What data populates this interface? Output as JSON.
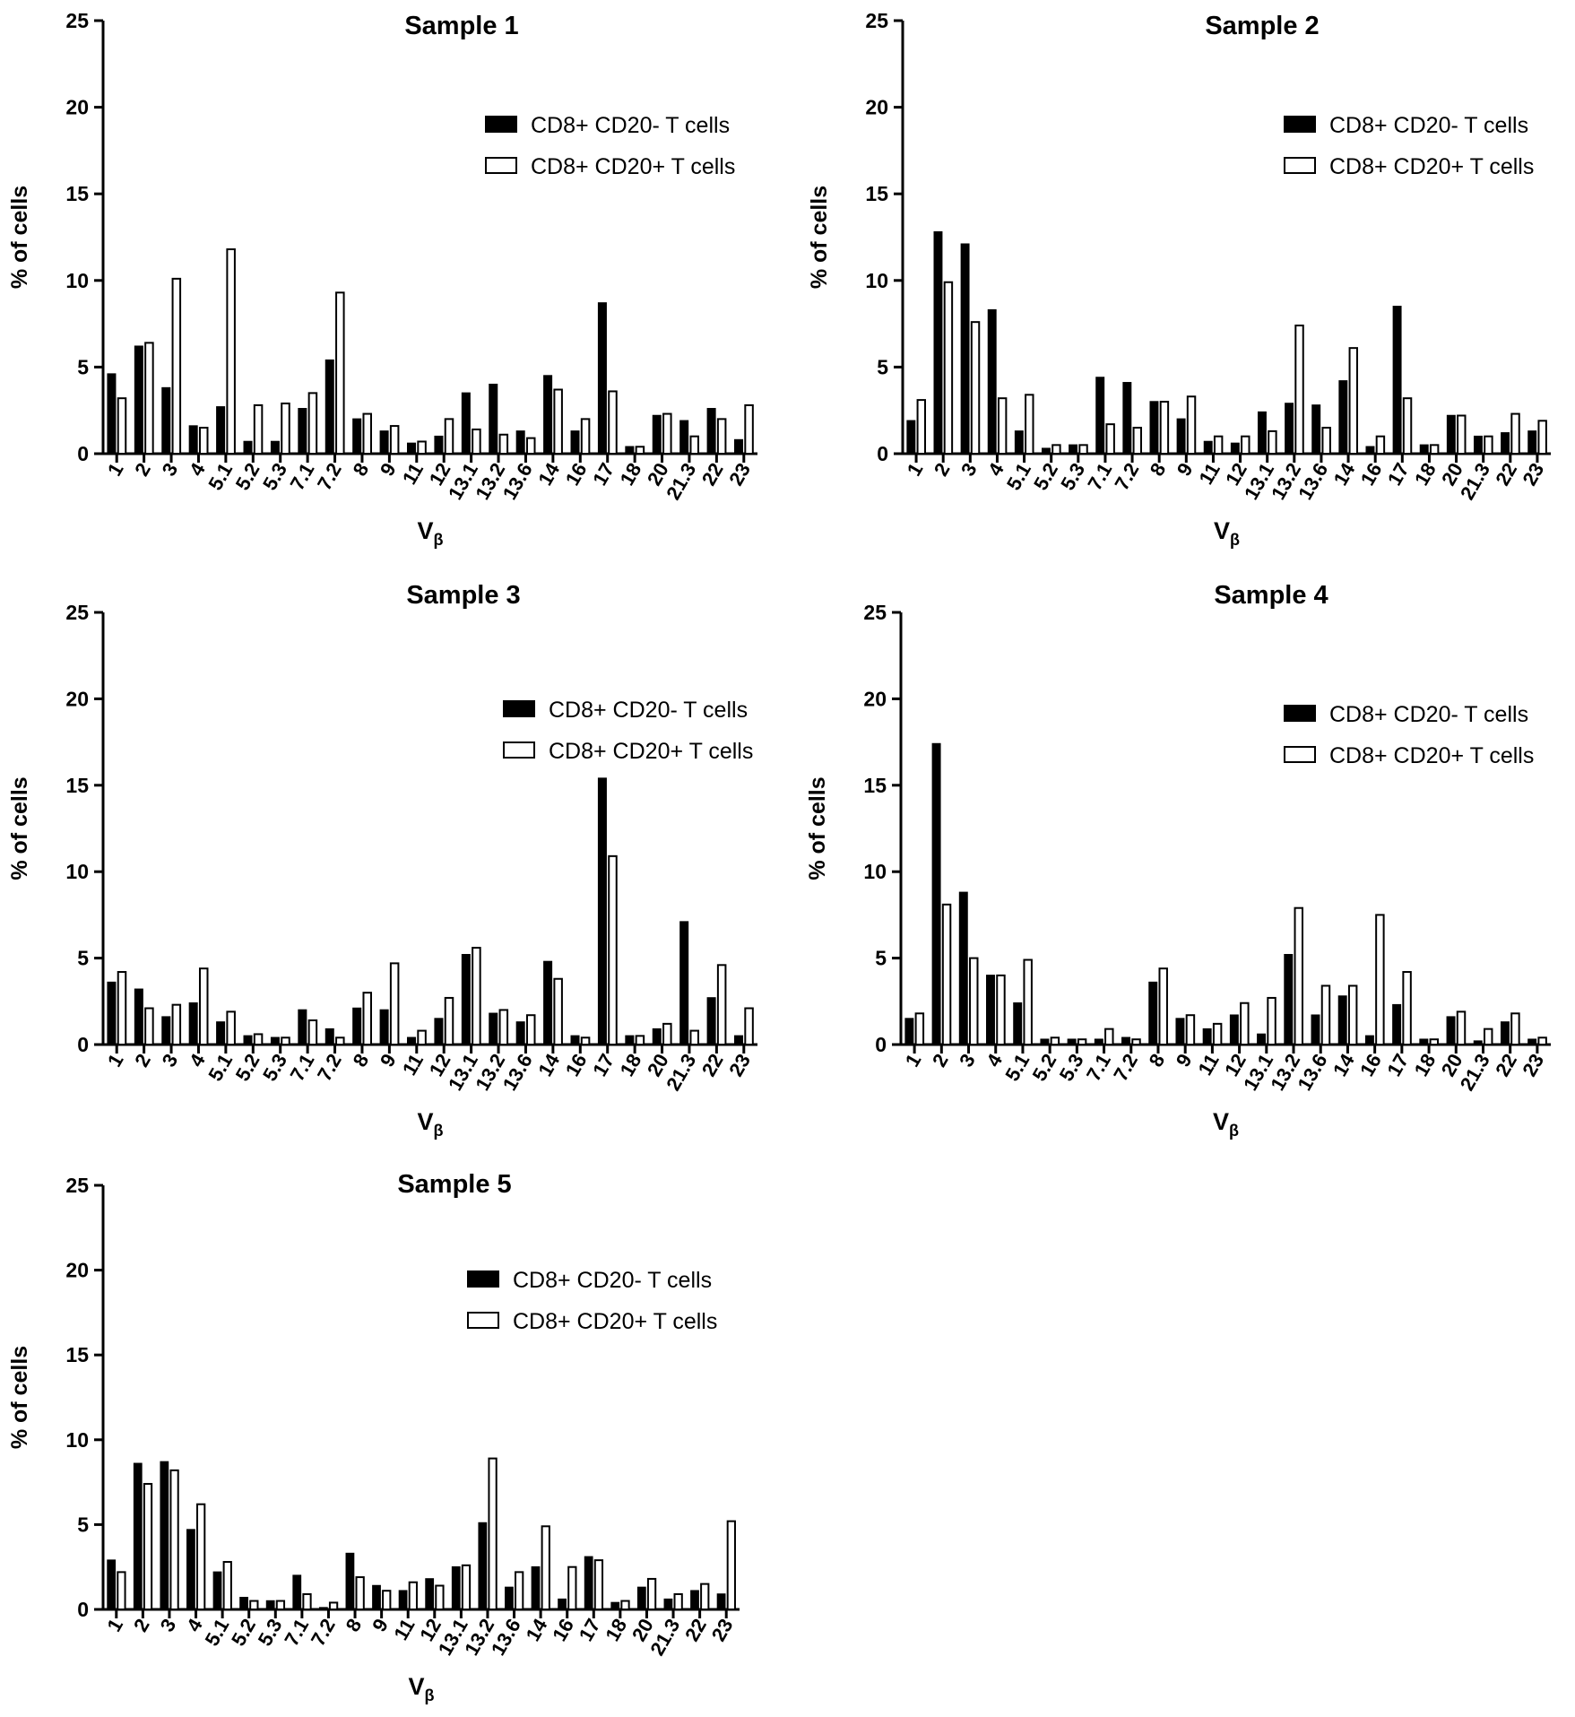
{
  "legend": {
    "neg": "CD8+ CD20- T cells",
    "pos": "CD8+ CD20+ T cells"
  },
  "colors": {
    "neg_fill": "#000000",
    "pos_fill": "#ffffff",
    "stroke": "#000000"
  },
  "chart_data": [
    {
      "type": "bar",
      "title": "Sample 1",
      "xlabel": "V",
      "xlabel_sub": "β",
      "ylabel": "% of cells",
      "ylim": [
        0,
        25
      ],
      "yticks": [
        "0",
        "5",
        "10",
        "15",
        "20",
        "25"
      ],
      "categories": [
        "1",
        "2",
        "3",
        "4",
        "5.1",
        "5.2",
        "5.3",
        "7.1",
        "7.2",
        "8",
        "9",
        "11",
        "12",
        "13.1",
        "13.2",
        "13.6",
        "14",
        "16",
        "17",
        "18",
        "20",
        "21.3",
        "22",
        "23"
      ],
      "series": [
        {
          "name": "CD8+ CD20- T cells",
          "values": [
            4.6,
            6.2,
            3.8,
            1.6,
            2.7,
            0.7,
            0.7,
            2.6,
            5.4,
            2.0,
            1.3,
            0.6,
            1.0,
            3.5,
            4.0,
            1.3,
            4.5,
            1.3,
            8.7,
            0.4,
            2.2,
            1.9,
            2.6,
            0.8
          ]
        },
        {
          "name": "CD8+ CD20+ T cells",
          "values": [
            3.2,
            6.4,
            10.1,
            1.5,
            11.8,
            2.8,
            2.9,
            3.5,
            9.3,
            2.3,
            1.6,
            0.7,
            2.0,
            1.4,
            1.1,
            0.9,
            3.7,
            2.0,
            3.6,
            0.4,
            2.3,
            1.0,
            2.0,
            2.8
          ]
        }
      ]
    },
    {
      "type": "bar",
      "title": "Sample 2",
      "xlabel": "V",
      "xlabel_sub": "β",
      "ylabel": "% of cells",
      "ylim": [
        0,
        25
      ],
      "yticks": [
        "0",
        "5",
        "10",
        "15",
        "20",
        "25"
      ],
      "categories": [
        "1",
        "2",
        "3",
        "4",
        "5.1",
        "5.2",
        "5.3",
        "7.1",
        "7.2",
        "8",
        "9",
        "11",
        "12",
        "13.1",
        "13.2",
        "13.6",
        "14",
        "16",
        "17",
        "18",
        "20",
        "21.3",
        "22",
        "23"
      ],
      "series": [
        {
          "name": "CD8+ CD20- T cells",
          "values": [
            1.9,
            12.8,
            12.1,
            8.3,
            1.3,
            0.3,
            0.5,
            4.4,
            4.1,
            3.0,
            2.0,
            0.7,
            0.6,
            2.4,
            2.9,
            2.8,
            4.2,
            0.4,
            8.5,
            0.5,
            2.2,
            1.0,
            1.2,
            1.3
          ]
        },
        {
          "name": "CD8+ CD20+ T cells",
          "values": [
            3.1,
            9.9,
            7.6,
            3.2,
            3.4,
            0.5,
            0.5,
            1.7,
            1.5,
            3.0,
            3.3,
            1.0,
            1.0,
            1.3,
            7.4,
            1.5,
            6.1,
            1.0,
            3.2,
            0.5,
            2.2,
            1.0,
            2.3,
            1.9
          ]
        }
      ]
    },
    {
      "type": "bar",
      "title": "Sample 3",
      "xlabel": "V",
      "xlabel_sub": "β",
      "ylabel": "% of cells",
      "ylim": [
        0,
        25
      ],
      "yticks": [
        "0",
        "5",
        "10",
        "15",
        "20",
        "25"
      ],
      "categories": [
        "1",
        "2",
        "3",
        "4",
        "5.1",
        "5.2",
        "5.3",
        "7.1",
        "7.2",
        "8",
        "9",
        "11",
        "12",
        "13.1",
        "13.2",
        "13.6",
        "14",
        "16",
        "17",
        "18",
        "20",
        "21.3",
        "22",
        "23"
      ],
      "series": [
        {
          "name": "CD8+ CD20- T cells",
          "values": [
            3.6,
            3.2,
            1.6,
            2.4,
            1.3,
            0.5,
            0.4,
            2.0,
            0.9,
            2.1,
            2.0,
            0.4,
            1.5,
            5.2,
            1.8,
            1.3,
            4.8,
            0.5,
            15.4,
            0.5,
            0.9,
            7.1,
            2.7,
            0.5
          ]
        },
        {
          "name": "CD8+ CD20+ T cells",
          "values": [
            4.2,
            2.1,
            2.3,
            4.4,
            1.9,
            0.6,
            0.4,
            1.4,
            0.4,
            3.0,
            4.7,
            0.8,
            2.7,
            5.6,
            2.0,
            1.7,
            3.8,
            0.4,
            10.9,
            0.5,
            1.2,
            0.8,
            4.6,
            2.1
          ]
        }
      ]
    },
    {
      "type": "bar",
      "title": "Sample 4",
      "xlabel": "V",
      "xlabel_sub": "β",
      "ylabel": "% of cells",
      "ylim": [
        0,
        25
      ],
      "yticks": [
        "0",
        "5",
        "10",
        "15",
        "20",
        "25"
      ],
      "categories": [
        "1",
        "2",
        "3",
        "4",
        "5.1",
        "5.2",
        "5.3",
        "7.1",
        "7.2",
        "8",
        "9",
        "11",
        "12",
        "13.1",
        "13.2",
        "13.6",
        "14",
        "16",
        "17",
        "18",
        "20",
        "21.3",
        "22",
        "23"
      ],
      "series": [
        {
          "name": "CD8+ CD20- T cells",
          "values": [
            1.5,
            17.4,
            8.8,
            4.0,
            2.4,
            0.3,
            0.3,
            0.3,
            0.4,
            3.6,
            1.5,
            0.9,
            1.7,
            0.6,
            5.2,
            1.7,
            2.8,
            0.5,
            2.3,
            0.3,
            1.6,
            0.2,
            1.3,
            0.3
          ]
        },
        {
          "name": "CD8+ CD20+ T cells",
          "values": [
            1.8,
            8.1,
            5.0,
            4.0,
            4.9,
            0.4,
            0.3,
            0.9,
            0.3,
            4.4,
            1.7,
            1.2,
            2.4,
            2.7,
            7.9,
            3.4,
            3.4,
            7.5,
            4.2,
            0.3,
            1.9,
            0.9,
            1.8,
            0.4
          ]
        }
      ]
    },
    {
      "type": "bar",
      "title": "Sample 5",
      "xlabel": "V",
      "xlabel_sub": "β",
      "ylabel": "% of cells",
      "ylim": [
        0,
        25
      ],
      "yticks": [
        "0",
        "5",
        "10",
        "15",
        "20",
        "25"
      ],
      "categories": [
        "1",
        "2",
        "3",
        "4",
        "5.1",
        "5.2",
        "5.3",
        "7.1",
        "7.2",
        "8",
        "9",
        "11",
        "12",
        "13.1",
        "13.2",
        "13.6",
        "14",
        "16",
        "17",
        "18",
        "20",
        "21.3",
        "22",
        "23"
      ],
      "series": [
        {
          "name": "CD8+ CD20- T cells",
          "values": [
            2.9,
            8.6,
            8.7,
            4.7,
            2.2,
            0.7,
            0.5,
            2.0,
            0.1,
            3.3,
            1.4,
            1.1,
            1.8,
            2.5,
            5.1,
            1.3,
            2.5,
            0.6,
            3.1,
            0.4,
            1.3,
            0.6,
            1.1,
            0.9
          ]
        },
        {
          "name": "CD8+ CD20+ T cells",
          "values": [
            2.2,
            7.4,
            8.2,
            6.2,
            2.8,
            0.5,
            0.5,
            0.9,
            0.4,
            1.9,
            1.1,
            1.6,
            1.4,
            2.6,
            8.9,
            2.2,
            4.9,
            2.5,
            2.9,
            0.5,
            1.8,
            0.9,
            1.5,
            5.2
          ]
        }
      ]
    }
  ]
}
